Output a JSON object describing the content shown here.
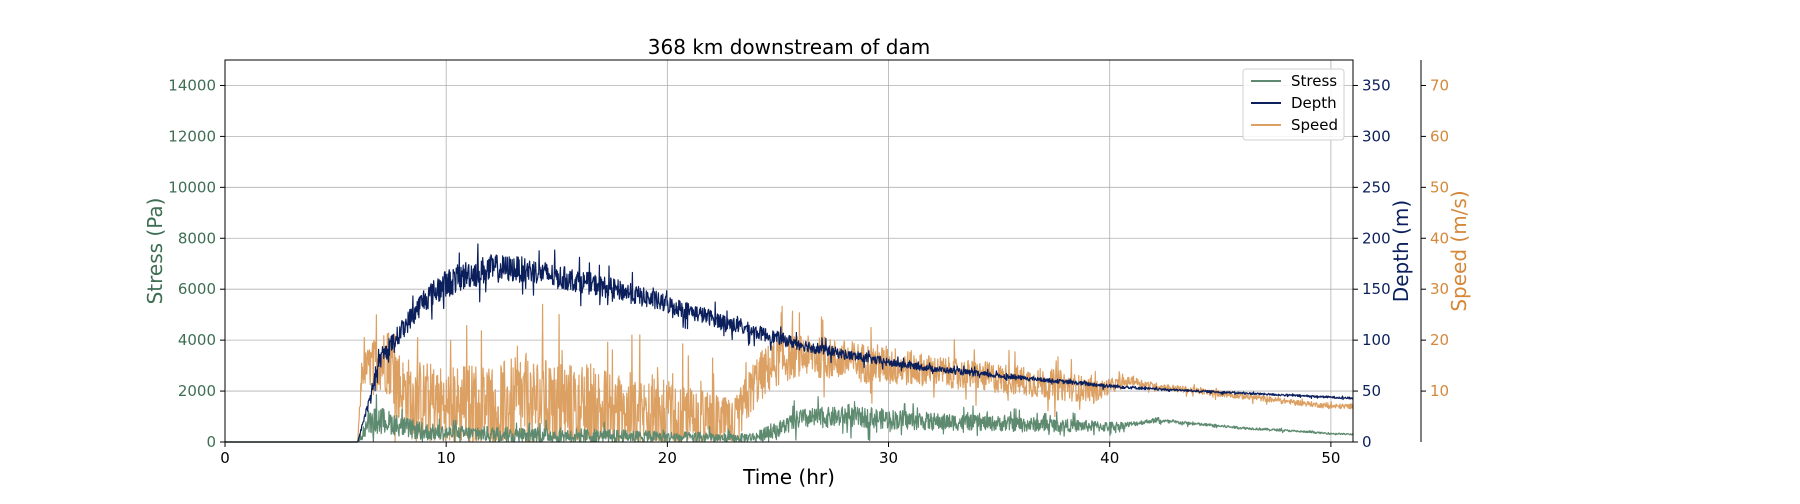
{
  "chart_data": {
    "type": "line",
    "title": "368 km downstream of dam",
    "xlabel": "Time (hr)",
    "xlim": [
      0,
      51
    ],
    "xticks": [
      0,
      10,
      20,
      30,
      40,
      50
    ],
    "grid": true,
    "legend_position": "top-right",
    "axes": {
      "stress": {
        "label": "Stress (Pa)",
        "ylim": [
          0,
          15000
        ],
        "ticks": [
          0,
          2000,
          4000,
          6000,
          8000,
          10000,
          12000,
          14000
        ],
        "color": "#3e6e53",
        "side": "left"
      },
      "depth": {
        "label": "Depth (m)",
        "ylim": [
          0,
          375
        ],
        "ticks": [
          0,
          50,
          100,
          150,
          200,
          250,
          300,
          350
        ],
        "color": "#0b1f5c",
        "side": "right"
      },
      "speed": {
        "label": "Speed (m/s)",
        "ylim": [
          0,
          75
        ],
        "ticks": [
          10,
          20,
          30,
          40,
          50,
          60,
          70
        ],
        "color": "#d4883a",
        "side": "right-offset"
      }
    },
    "series": [
      {
        "name": "Stress",
        "axis": "stress",
        "color": "#5e8a70",
        "x": [
          0,
          6,
          6.5,
          7,
          8,
          9,
          10,
          12,
          14,
          16,
          18,
          20,
          22,
          23,
          24,
          25,
          26,
          28,
          30,
          32,
          34,
          36,
          38,
          40,
          41,
          42,
          44,
          46,
          48,
          50,
          51
        ],
        "y": [
          0,
          0,
          800,
          900,
          600,
          400,
          350,
          300,
          280,
          250,
          230,
          200,
          180,
          150,
          200,
          500,
          900,
          1000,
          900,
          800,
          750,
          700,
          650,
          600,
          700,
          850,
          700,
          550,
          450,
          330,
          300
        ],
        "noise": [
          0,
          0,
          500,
          500,
          400,
          350,
          300,
          300,
          300,
          280,
          250,
          220,
          200,
          150,
          200,
          300,
          400,
          400,
          400,
          350,
          300,
          300,
          250,
          200,
          100,
          80,
          60,
          50,
          40,
          30,
          30
        ]
      },
      {
        "name": "Depth",
        "axis": "depth",
        "color": "#0b1f5c",
        "x": [
          0,
          6,
          6.5,
          7,
          8,
          9,
          10,
          11,
          12,
          13,
          14,
          15,
          16,
          18,
          20,
          22,
          24,
          26,
          28,
          30,
          32,
          34,
          36,
          38,
          40,
          42,
          44,
          46,
          48,
          50,
          51
        ],
        "y": [
          0,
          0,
          40,
          80,
          110,
          140,
          155,
          165,
          170,
          170,
          168,
          162,
          158,
          148,
          135,
          122,
          108,
          96,
          86,
          78,
          72,
          67,
          63,
          59,
          55,
          52,
          50,
          48,
          46,
          44,
          43
        ],
        "noise": [
          0,
          0,
          5,
          8,
          10,
          12,
          14,
          14,
          14,
          13,
          12,
          12,
          11,
          10,
          9,
          8,
          7,
          6,
          5,
          4,
          3,
          3,
          2,
          2,
          2,
          1,
          1,
          1,
          1,
          1,
          1
        ]
      },
      {
        "name": "Speed",
        "axis": "speed",
        "color": "#dca062",
        "x": [
          0,
          6,
          6.2,
          7,
          7.5,
          8,
          9,
          10,
          12,
          14,
          16,
          18,
          20,
          22,
          23,
          24,
          25,
          26,
          28,
          30,
          32,
          34,
          36,
          38,
          39.5,
          40,
          41,
          42,
          44,
          46,
          48,
          50,
          51
        ],
        "y": [
          0,
          0,
          14,
          16,
          16,
          10,
          8,
          7,
          7,
          8,
          7,
          6,
          5,
          4,
          3,
          12,
          16,
          17,
          16,
          15,
          14,
          13,
          12,
          11,
          10,
          11,
          12,
          11,
          10,
          9,
          8,
          7,
          7
        ],
        "noise": [
          0,
          0,
          3,
          6,
          7,
          7,
          8,
          8,
          9,
          9,
          9,
          8,
          7,
          6,
          5,
          5,
          5,
          4,
          4,
          4,
          3,
          3,
          3,
          3,
          2,
          1.5,
          0.8,
          0.7,
          0.6,
          0.6,
          0.5,
          0.5,
          0.5
        ]
      }
    ]
  }
}
